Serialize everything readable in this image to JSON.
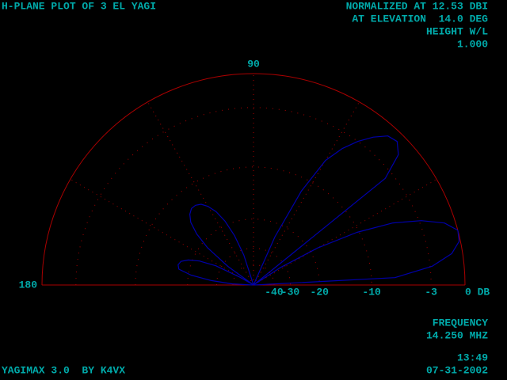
{
  "chart_data": {
    "type": "polar",
    "title": "H-PLANE PLOT OF 3 EL YAGI",
    "info": [
      "NORMALIZED AT 12.53 DBI",
      "AT ELEVATION  14.0 DEG",
      "HEIGHT W/L",
      "1.000"
    ],
    "footer_left": "YAGIMAX 3.0  BY K4VX",
    "footer_right": [
      "FREQUENCY",
      "14.250 MHZ",
      "13:49",
      "07-31-2002"
    ],
    "radial_scale": "arrl",
    "rlim": [
      -99,
      0
    ],
    "rticks": [
      -40,
      -30,
      -20,
      {
        "value": -10,
        "label": "-10"
      },
      -3,
      {
        "value": 0,
        "label": "0 DB"
      }
    ],
    "angleticks": [
      90,
      180
    ],
    "angle_grid": [
      30,
      60,
      90,
      120,
      150
    ],
    "grid": true,
    "axis_color": "#aa0000",
    "text_color": "#00aaaa",
    "series": [
      {
        "color": "#0000aa",
        "x": [
          0,
          3,
          6,
          9,
          12,
          15,
          18,
          21,
          24,
          27,
          30,
          33,
          36,
          39,
          42,
          45,
          48,
          51,
          54,
          57,
          60,
          63,
          66,
          69,
          72,
          75,
          78,
          81,
          84,
          87,
          90,
          93,
          96,
          99,
          102,
          105,
          108,
          111,
          114,
          117,
          120,
          123,
          126,
          129,
          132,
          135,
          138,
          141,
          144,
          147,
          150,
          153,
          156,
          159,
          162,
          165,
          168,
          171,
          174,
          177,
          180
        ],
        "values": [
          -99,
          -6.9,
          -2.8,
          -0.9,
          -0.1,
          0,
          -0.9,
          -2.8,
          -5.6,
          -10.3,
          -18,
          -32.6,
          -99,
          -3.8,
          -1.4,
          -0.7,
          -0.9,
          -1.8,
          -3.0,
          -4.5,
          -6.6,
          -11.9,
          -23.8,
          -99,
          -99,
          -99,
          -99,
          -99,
          -99,
          -99,
          -99,
          -99,
          -99,
          -99,
          -99,
          -99,
          -32.6,
          -23.8,
          -19,
          -16.2,
          -14.5,
          -13.5,
          -13.1,
          -13.1,
          -13.7,
          -14.9,
          -17.5,
          -21.9,
          -32.6,
          -99,
          -45,
          -27.6,
          -21.9,
          -19,
          -17.5,
          -17.1,
          -17.5,
          -20.7,
          -27.6,
          -39.5,
          -99
        ]
      }
    ]
  }
}
